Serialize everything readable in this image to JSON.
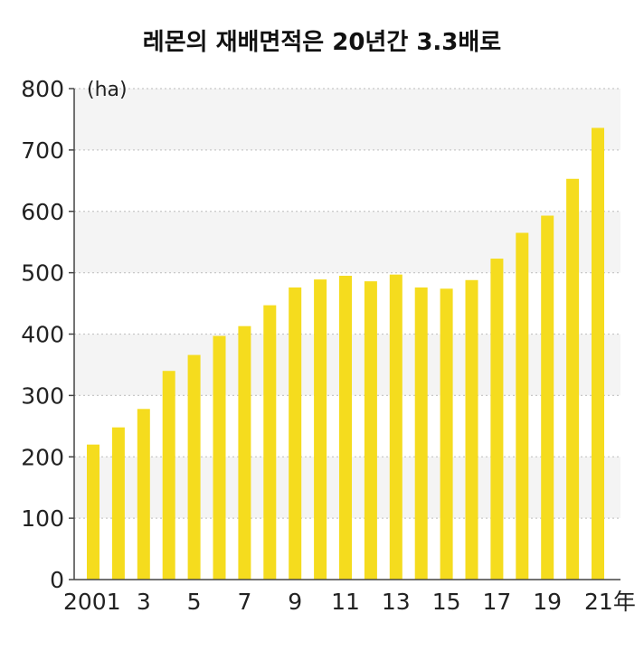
{
  "chart_data": {
    "type": "bar",
    "title": "레몬의 재배면적은 20년간 3.3배로",
    "unit_label": "(ha)",
    "year_suffix": "年",
    "ylim": [
      0,
      800
    ],
    "yticks": [
      0,
      100,
      200,
      300,
      400,
      500,
      600,
      700,
      800
    ],
    "categories": [
      "2001",
      "2002",
      "2003",
      "2004",
      "2005",
      "2006",
      "2007",
      "2008",
      "2009",
      "2010",
      "2011",
      "2012",
      "2013",
      "2014",
      "2015",
      "2016",
      "2017",
      "2018",
      "2019",
      "2020",
      "2021"
    ],
    "x_tick_labels": [
      "2001",
      "",
      "3",
      "",
      "5",
      "",
      "7",
      "",
      "9",
      "",
      "11",
      "",
      "13",
      "",
      "15",
      "",
      "17",
      "",
      "19",
      "",
      "21"
    ],
    "values": [
      220,
      248,
      278,
      340,
      366,
      397,
      413,
      447,
      476,
      489,
      495,
      486,
      497,
      476,
      474,
      488,
      523,
      565,
      593,
      653,
      736
    ],
    "grid": true,
    "colors": {
      "bar": "#f5dc1e",
      "band": "#f4f4f4",
      "grid": "#c8c8c8",
      "axis": "#444444"
    }
  }
}
